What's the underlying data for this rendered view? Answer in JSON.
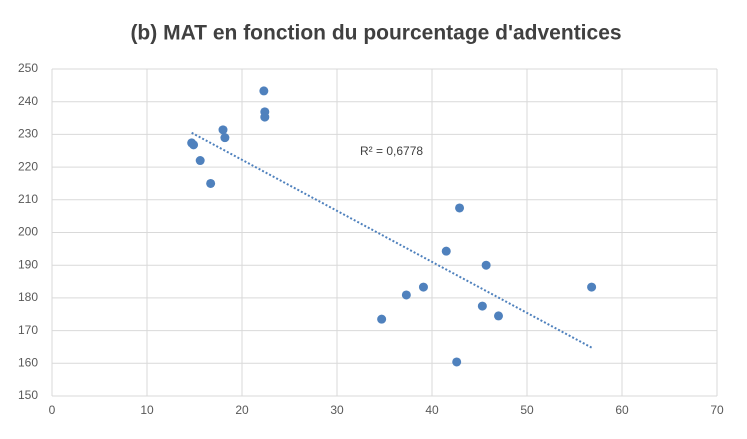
{
  "chart_data": {
    "type": "scatter",
    "title": "(b) MAT en fonction du pourcentage d'adventices",
    "x": [
      14.7,
      14.9,
      15.6,
      16.7,
      18.0,
      18.2,
      22.3,
      22.4,
      22.4,
      34.7,
      37.3,
      39.1,
      41.5,
      42.9,
      42.6,
      45.3,
      45.7,
      47.0,
      56.8
    ],
    "values": [
      227.4,
      226.8,
      222,
      215,
      231.4,
      229,
      243.3,
      236.9,
      235.3,
      173.5,
      180.9,
      183.3,
      194.3,
      207.5,
      160.4,
      177.5,
      190,
      174.5,
      183.3
    ],
    "color": "#4f81bd",
    "trendline": {
      "x": [
        14.7,
        56.8
      ],
      "y": [
        230.5,
        164.8
      ],
      "color": "#4f81bd",
      "label": "R² = 0,6778"
    },
    "xlim": [
      0,
      70
    ],
    "xticks": [
      0,
      10,
      20,
      30,
      40,
      50,
      60,
      70
    ],
    "ylim": [
      150,
      250
    ],
    "yticks": [
      150,
      160,
      170,
      180,
      190,
      200,
      210,
      220,
      230,
      240,
      250
    ],
    "grid": true
  }
}
